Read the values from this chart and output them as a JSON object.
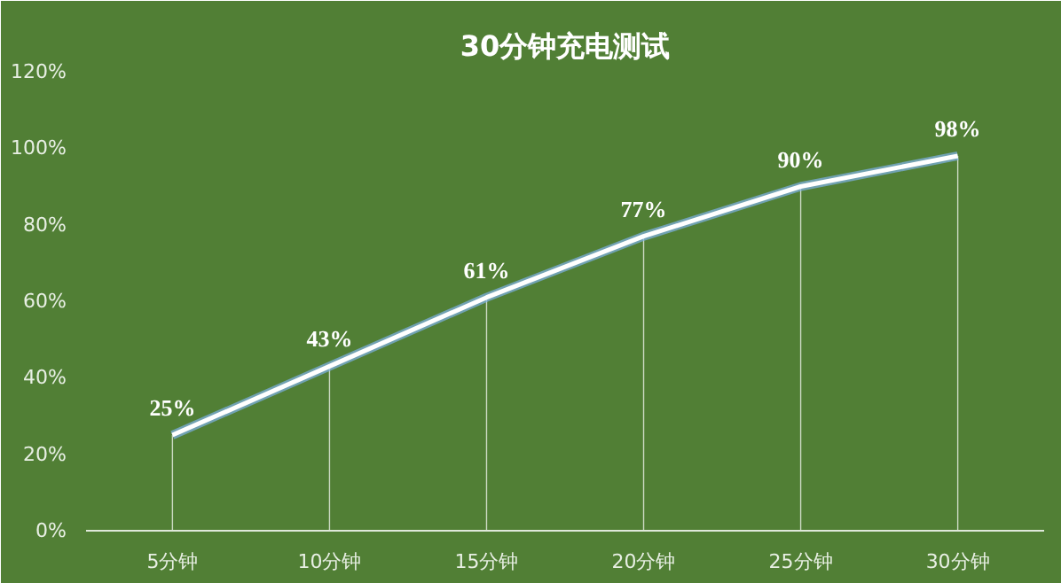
{
  "chart_data": {
    "type": "line",
    "title": "30分钟充电测试",
    "categories": [
      "5分钟",
      "10分钟",
      "15分钟",
      "20分钟",
      "25分钟",
      "30分钟"
    ],
    "series": [
      {
        "color": "#ffffff",
        "values": [
          25,
          43,
          61,
          77,
          90,
          98
        ]
      }
    ],
    "value_labels": [
      "25%",
      "43%",
      "61%",
      "77%",
      "90%",
      "98%"
    ],
    "ylim": [
      0,
      120
    ],
    "yticks": [
      {
        "value": 0,
        "label": "0%"
      },
      {
        "value": 20,
        "label": "20%"
      },
      {
        "value": 40,
        "label": "40%"
      },
      {
        "value": 60,
        "label": "60%"
      },
      {
        "value": 80,
        "label": "80%"
      },
      {
        "value": 100,
        "label": "100%"
      },
      {
        "value": 120,
        "label": "120%"
      }
    ],
    "marker": "none",
    "line_style": "solid"
  }
}
